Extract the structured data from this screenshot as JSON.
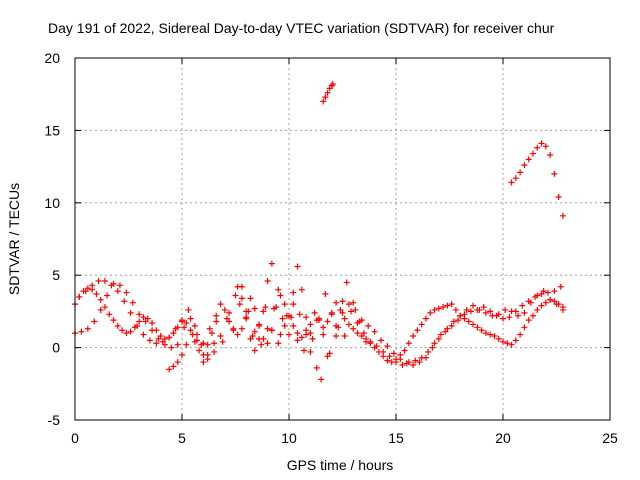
{
  "chart_data": {
    "type": "scatter",
    "title": "Day 191 of 2022, Sidereal Day-to-day VTEC variation (SDTVAR) for receiver chur",
    "xlabel": "GPS time / hours",
    "ylabel": "SDTVAR / TECUs",
    "xlim": [
      0,
      25
    ],
    "ylim": [
      -5,
      20
    ],
    "xticks": [
      "0",
      "5",
      "10",
      "15",
      "20",
      "25"
    ],
    "yticks": [
      "-5",
      "0",
      "5",
      "10",
      "15",
      "20"
    ],
    "grid": true,
    "marker": "+",
    "series": [
      {
        "name": "SDTVAR",
        "color": "#ff0000",
        "x": [
          0.0,
          0.2,
          0.4,
          0.6,
          0.8,
          1.0,
          1.2,
          1.4,
          1.6,
          1.8,
          2.0,
          2.2,
          2.4,
          2.6,
          2.8,
          3.0,
          3.2,
          3.4,
          3.6,
          3.8,
          4.0,
          4.2,
          4.4,
          4.6,
          4.8,
          5.0,
          5.2,
          5.4,
          5.6,
          5.8,
          6.0,
          6.2,
          6.4,
          6.6,
          6.8,
          7.0,
          7.2,
          7.4,
          7.6,
          7.8,
          8.0,
          8.2,
          8.4,
          8.6,
          8.8,
          9.0,
          9.2,
          9.4,
          9.6,
          9.8,
          10.0,
          10.2,
          10.4,
          10.6,
          10.8,
          11.0,
          11.2,
          11.4,
          11.6,
          11.8,
          12.0,
          12.2,
          12.4,
          12.6,
          12.8,
          13.0,
          13.2,
          13.4,
          13.6,
          13.8,
          14.0,
          14.2,
          14.4,
          14.6,
          14.8,
          15.0,
          15.2,
          15.4,
          15.6,
          15.8,
          16.0,
          16.2,
          16.4,
          16.6,
          16.8,
          17.0,
          17.2,
          17.4,
          17.6,
          17.8,
          18.0,
          18.2,
          18.4,
          18.6,
          18.8,
          19.0,
          19.2,
          19.4,
          19.6,
          19.8,
          20.0,
          20.2,
          20.4,
          20.6,
          20.8,
          21.0,
          21.2,
          21.4,
          21.6,
          21.8,
          22.0,
          22.2,
          22.4,
          22.6,
          22.8,
          0.0,
          0.3,
          0.6,
          0.9,
          1.2,
          1.5,
          1.8,
          2.1,
          2.4,
          2.7,
          3.0,
          3.3,
          3.6,
          3.9,
          4.2,
          4.5,
          4.8,
          5.1,
          5.4,
          5.7,
          6.0,
          6.3,
          6.6,
          6.9,
          7.2,
          7.5,
          7.8,
          8.1,
          8.4,
          8.7,
          9.0,
          9.3,
          9.6,
          9.9,
          10.2,
          10.5,
          10.8,
          11.1,
          11.4,
          11.7,
          12.0,
          12.3,
          12.6,
          12.9,
          13.2,
          13.5,
          13.8,
          14.1,
          14.4,
          14.7,
          15.0,
          15.3,
          15.6,
          15.9,
          16.2,
          16.5,
          16.8,
          17.1,
          17.4,
          17.7,
          18.0,
          18.3,
          18.6,
          18.9,
          19.2,
          19.5,
          19.8,
          20.1,
          20.4,
          20.7,
          21.0,
          21.3,
          21.6,
          21.9,
          22.2,
          22.5,
          22.8,
          0.2,
          0.5,
          0.8,
          1.1,
          1.4,
          1.7,
          2.0,
          2.3,
          2.6,
          2.9,
          3.2,
          3.5,
          3.8,
          4.1,
          4.4,
          4.7,
          5.0,
          5.3,
          5.6,
          5.9,
          6.2,
          6.5,
          6.8,
          7.1,
          7.4,
          7.7,
          8.0,
          8.3,
          8.6,
          8.9,
          9.2,
          9.5,
          9.8,
          10.1,
          10.4,
          10.7,
          11.0,
          11.3,
          11.6,
          11.9,
          12.2,
          12.5,
          12.8,
          13.1,
          13.4,
          13.7,
          14.0,
          14.3,
          14.6,
          14.9,
          15.2,
          15.5,
          15.8,
          16.1,
          16.4,
          16.7,
          17.0,
          17.3,
          17.6,
          17.9,
          18.2,
          18.5,
          18.8,
          19.1,
          19.4,
          19.7,
          20.0,
          20.3,
          20.6,
          20.9,
          21.2,
          21.5,
          21.8,
          22.1,
          22.4,
          22.7,
          4.4,
          4.6,
          4.8,
          5.0,
          5.2,
          5.5,
          5.7,
          6.0,
          6.2,
          6.5,
          7.6,
          7.8,
          8.0,
          8.2,
          8.4,
          8.6,
          8.8,
          9.0,
          9.2,
          9.5,
          9.7,
          10.0,
          10.2,
          10.4,
          10.6,
          10.8,
          11.0,
          11.3,
          11.5,
          11.8,
          12.2,
          12.5,
          12.7,
          13.0,
          13.3,
          13.6,
          11.6,
          11.7,
          11.8,
          11.9,
          12.0,
          12.05,
          20.4,
          20.6,
          20.8,
          21.0,
          21.2,
          21.4,
          21.6,
          21.8,
          22.0,
          22.2,
          22.4,
          22.6,
          22.8
        ],
        "y": [
          3.0,
          3.5,
          3.9,
          4.1,
          4.0,
          3.7,
          3.3,
          2.8,
          2.3,
          1.9,
          1.5,
          1.2,
          1.0,
          1.1,
          1.4,
          1.8,
          2.1,
          2.0,
          1.7,
          1.2,
          0.8,
          0.6,
          0.7,
          1.0,
          1.4,
          1.8,
          1.7,
          1.2,
          0.4,
          -0.2,
          -0.5,
          0.2,
          1.0,
          2.2,
          3.0,
          2.6,
          1.8,
          1.2,
          0.9,
          1.3,
          2.5,
          3.4,
          2.7,
          1.5,
          0.6,
          0.3,
          1.2,
          2.8,
          3.6,
          3.0,
          2.2,
          1.5,
          1.0,
          0.7,
          0.9,
          1.6,
          2.4,
          2.0,
          1.4,
          1.8,
          2.4,
          3.1,
          2.6,
          2.0,
          1.6,
          1.3,
          1.0,
          0.8,
          0.6,
          0.3,
          0.0,
          -0.3,
          -0.6,
          -0.9,
          -1.0,
          -0.8,
          -0.5,
          -0.2,
          0.3,
          0.8,
          1.2,
          1.6,
          2.0,
          2.4,
          2.6,
          2.7,
          2.8,
          2.9,
          3.0,
          2.6,
          2.2,
          2.0,
          1.8,
          1.6,
          1.4,
          1.2,
          1.0,
          0.9,
          0.8,
          0.6,
          0.4,
          0.3,
          0.2,
          0.5,
          0.9,
          1.4,
          1.9,
          2.2,
          2.6,
          2.9,
          3.1,
          3.3,
          3.2,
          3.0,
          2.8,
          1.0,
          1.1,
          1.3,
          1.8,
          2.6,
          3.6,
          4.4,
          4.3,
          3.8,
          3.1,
          2.3,
          1.8,
          1.2,
          0.6,
          0.2,
          0.0,
          0.2,
          1.4,
          2.0,
          0.9,
          0.3,
          1.3,
          1.8,
          0.4,
          2.4,
          3.6,
          4.2,
          2.5,
          1.1,
          0.2,
          1.3,
          2.7,
          0.9,
          2.2,
          3.8,
          2.3,
          1.2,
          0.6,
          1.9,
          3.7,
          2.3,
          1.4,
          0.8,
          2.5,
          1.7,
          1.0,
          0.4,
          0.1,
          -0.3,
          -0.6,
          -1.0,
          -1.2,
          -1.0,
          -0.9,
          -0.7,
          -0.3,
          0.3,
          0.9,
          1.3,
          1.8,
          2.2,
          2.6,
          2.9,
          2.6,
          2.4,
          2.2,
          2.3,
          2.6,
          2.5,
          2.2,
          2.4,
          3.1,
          3.6,
          3.9,
          3.3,
          3.0,
          2.6,
          3.5,
          3.9,
          4.3,
          4.6,
          4.6,
          4.3,
          3.9,
          3.2,
          2.4,
          1.5,
          0.9,
          0.5,
          0.3,
          0.4,
          0.7,
          1.3,
          1.9,
          2.6,
          1.5,
          0.2,
          -0.8,
          -0.3,
          0.8,
          2.0,
          1.3,
          3.0,
          2.1,
          0.8,
          1.6,
          2.8,
          1.2,
          0.3,
          1.5,
          2.1,
          0.5,
          -0.2,
          1.0,
          1.9,
          0.9,
          -0.4,
          0.8,
          2.4,
          3.0,
          2.6,
          1.9,
          1.5,
          1.1,
          0.5,
          0.1,
          -0.4,
          -0.8,
          -1.1,
          -1.2,
          -1.0,
          -0.7,
          0.0,
          0.6,
          1.1,
          1.5,
          1.9,
          2.3,
          2.5,
          2.6,
          2.8,
          2.5,
          2.2,
          2.0,
          2.1,
          2.5,
          2.9,
          3.2,
          3.5,
          3.7,
          3.8,
          3.9,
          4.2,
          -1.5,
          -1.3,
          -1.0,
          -0.5,
          0.2,
          0.9,
          0.5,
          -1.0,
          -0.5,
          0.3,
          4.2,
          3.4,
          2.0,
          0.6,
          -0.2,
          0.6,
          2.5,
          4.6,
          5.8,
          4.0,
          2.0,
          0.9,
          3.0,
          5.6,
          4.0,
          2.1,
          -0.3,
          -1.4,
          -2.2,
          -0.6,
          1.5,
          3.2,
          4.5,
          3.1,
          1.8,
          0.4,
          17.0,
          17.3,
          17.6,
          17.9,
          18.1,
          18.2,
          11.4,
          11.7,
          12.1,
          12.6,
          13.0,
          13.4,
          13.8,
          14.1,
          13.9,
          13.3,
          12.0,
          10.4,
          9.1
        ]
      }
    ]
  }
}
